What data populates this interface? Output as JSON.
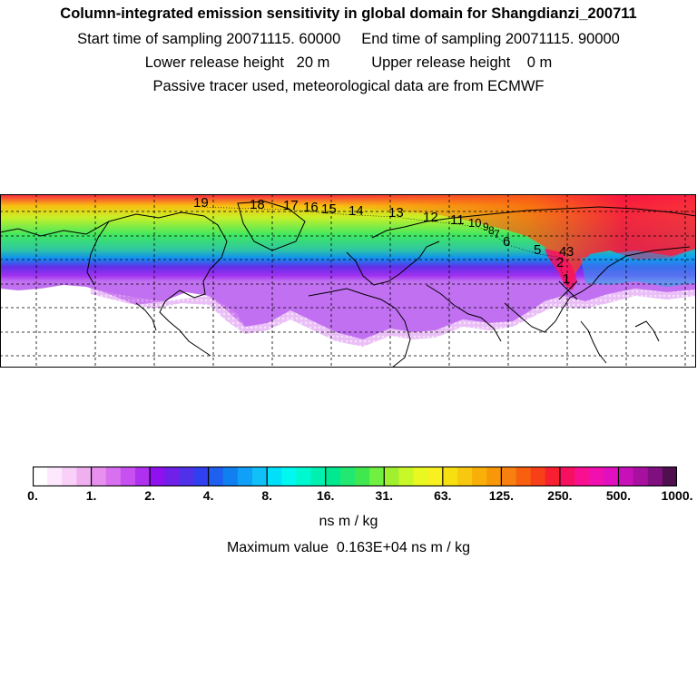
{
  "header": {
    "title": "Column-integrated emission sensitivity in global domain for Shangdianzi_200711",
    "line1": "Start time of sampling 20071115. 60000     End time of sampling 20071115. 90000",
    "line2": "Lower release height   20 m          Upper release height    0 m",
    "line3": "Passive tracer used, meteorological data are from ECMWF"
  },
  "map": {
    "station_marker": "x",
    "trajectory_labels": [
      "19",
      "18",
      "17",
      "16",
      "15",
      "14",
      "13",
      "12",
      "11",
      "10",
      "9",
      "8",
      "7",
      "6",
      "5",
      "4",
      "3",
      "2",
      "1"
    ]
  },
  "colorbar": {
    "colors": [
      "#ffffff",
      "#fde8fd",
      "#f8d0f8",
      "#f0b0f0",
      "#e890f0",
      "#d870f0",
      "#c850f0",
      "#b030f0",
      "#9010f0",
      "#7020e8",
      "#5030e8",
      "#3040f0",
      "#2060f0",
      "#1080f0",
      "#10a0f8",
      "#10c0f8",
      "#00e0f8",
      "#00f8f0",
      "#00f8d0",
      "#00f0b0",
      "#00e890",
      "#20e870",
      "#40e850",
      "#70f040",
      "#a0f030",
      "#c8f828",
      "#e8f820",
      "#f8f020",
      "#f8e010",
      "#f8c810",
      "#f8b008",
      "#f89808",
      "#f88010",
      "#f86010",
      "#f84018",
      "#f82030",
      "#f81060",
      "#f81090",
      "#f010b0",
      "#e010c0",
      "#c810b8",
      "#a810a0",
      "#801080",
      "#501050"
    ],
    "tick_labels": [
      "0.",
      "1.",
      "2.",
      "4.",
      "8.",
      "16.",
      "31.",
      "63.",
      "125.",
      "250.",
      "500.",
      "1000."
    ],
    "units": "ns m / kg",
    "max_value": "Maximum value  0.163E+04 ns m / kg"
  }
}
